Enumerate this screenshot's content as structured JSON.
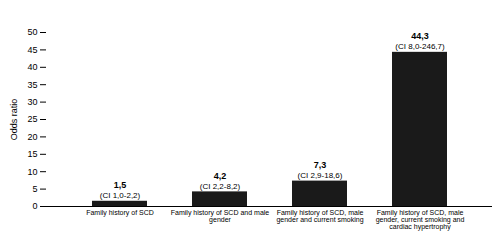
{
  "chart_data": {
    "type": "bar",
    "categories": [
      "Family history of SCD",
      "Family history of SCD and male\ngender",
      "Family history of SCD, male\ngender and current smoking",
      "Family history of SCD, male\ngender, current smoking and\ncardiac hypertrophy"
    ],
    "values": [
      1.5,
      4.2,
      7.3,
      44.3
    ],
    "value_labels": [
      "1,5",
      "4,2",
      "7,3",
      "44,3"
    ],
    "ci_labels": [
      "(CI 1,0-2,2)",
      "(CI 2,2-8,2)",
      "(CI 2,9-18,6)",
      "(CI 8,0-246,7)"
    ],
    "color": "#1a1a1a",
    "ylabel": "Odds ratio",
    "ylim": [
      0,
      50
    ],
    "yticks": [
      0,
      5,
      10,
      15,
      20,
      25,
      30,
      35,
      40,
      45,
      50
    ],
    "grid": false,
    "data_labels": true
  }
}
